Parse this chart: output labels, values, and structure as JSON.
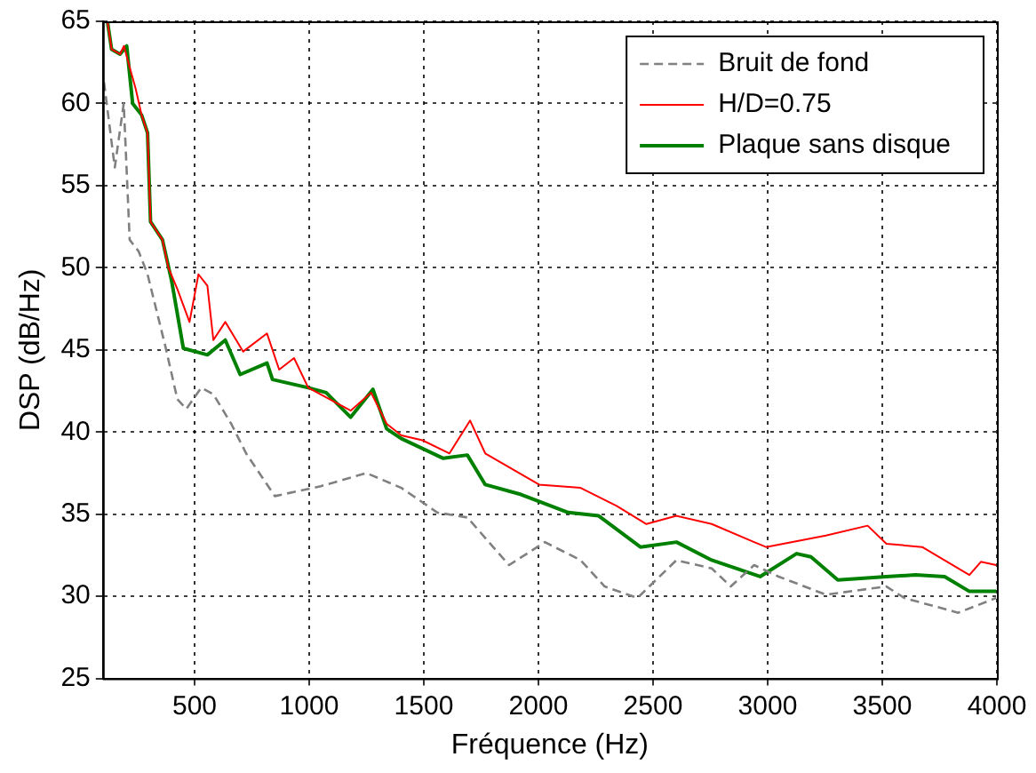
{
  "chart_data": {
    "type": "line",
    "xlabel": "Fréquence (Hz)",
    "ylabel": "DSP (dB/Hz)",
    "xlim": [
      100,
      4000
    ],
    "xticks": [
      500,
      1000,
      1500,
      2000,
      2500,
      3000,
      3500,
      4000
    ],
    "ylim": [
      25,
      65
    ],
    "yticks": [
      25,
      30,
      35,
      40,
      45,
      50,
      55,
      60,
      65
    ],
    "grid": true,
    "legend": "top right",
    "marker": "none",
    "series": [
      {
        "name": "Bruit de fond",
        "color": "#808080",
        "line_style": "dashed",
        "x": [
          105,
          152,
          191,
          217,
          256,
          295,
          373,
          425,
          464,
          529,
          582,
          660,
          725,
          850,
          1050,
          1250,
          1402,
          1559,
          1690,
          1872,
          2028,
          2184,
          2289,
          2432,
          2602,
          2756,
          2839,
          2941,
          3048,
          3254,
          3518,
          3596,
          3831,
          3997
        ],
        "values": [
          61.3,
          56.1,
          60.0,
          51.7,
          51.0,
          49.6,
          45.2,
          42.0,
          41.4,
          42.7,
          42.3,
          40.5,
          38.7,
          36.1,
          36.7,
          37.5,
          36.6,
          35.1,
          34.8,
          31.9,
          33.3,
          32.2,
          30.6,
          29.9,
          32.2,
          31.7,
          30.6,
          31.9,
          31.2,
          30.1,
          30.6,
          29.9,
          29.0,
          29.9
        ]
      },
      {
        "name": "H/D=0.75",
        "color": "#ff0000",
        "line_style": "solid",
        "x": [
          120,
          138,
          175,
          192,
          217,
          243,
          269,
          295,
          308,
          360,
          386,
          425,
          478,
          517,
          556,
          582,
          634,
          712,
          816,
          869,
          934,
          996,
          1181,
          1270,
          1338,
          1402,
          1494,
          1612,
          1702,
          1768,
          2003,
          2184,
          2341,
          2471,
          2602,
          2756,
          2941,
          2993,
          3254,
          3436,
          3518,
          3674,
          3880,
          3930,
          3997
        ],
        "values": [
          65.0,
          63.3,
          63.0,
          63.5,
          62.2,
          60.9,
          59.3,
          58.2,
          52.8,
          51.7,
          50.0,
          48.7,
          46.7,
          49.6,
          48.9,
          45.6,
          46.7,
          44.9,
          46.0,
          43.8,
          44.5,
          42.7,
          41.3,
          42.4,
          40.5,
          39.8,
          39.5,
          38.7,
          40.7,
          38.7,
          36.8,
          36.6,
          35.5,
          34.4,
          34.9,
          34.4,
          33.3,
          33.0,
          33.7,
          34.3,
          33.2,
          33.0,
          31.3,
          32.1,
          31.9
        ]
      },
      {
        "name": "Plaque sans disque",
        "color": "#008000",
        "line_style": "solid",
        "x": [
          120,
          138,
          175,
          204,
          230,
          269,
          295,
          308,
          360,
          400,
          451,
          556,
          634,
          699,
          816,
          840,
          996,
          1074,
          1181,
          1278,
          1338,
          1402,
          1585,
          1690,
          1768,
          1924,
          2130,
          2263,
          2445,
          2602,
          2756,
          2967,
          3126,
          3189,
          3306,
          3518,
          3645,
          3772,
          3880,
          3997
        ],
        "values": [
          65.0,
          63.3,
          63.0,
          63.5,
          60.0,
          59.3,
          58.2,
          52.8,
          51.7,
          49.2,
          45.1,
          44.7,
          45.6,
          43.5,
          44.2,
          43.2,
          42.7,
          42.4,
          40.9,
          42.6,
          40.2,
          39.6,
          38.4,
          38.6,
          36.8,
          36.2,
          35.1,
          34.9,
          33.0,
          33.3,
          32.2,
          31.2,
          32.6,
          32.4,
          31.0,
          31.2,
          31.3,
          31.2,
          30.3,
          30.3
        ]
      }
    ]
  }
}
